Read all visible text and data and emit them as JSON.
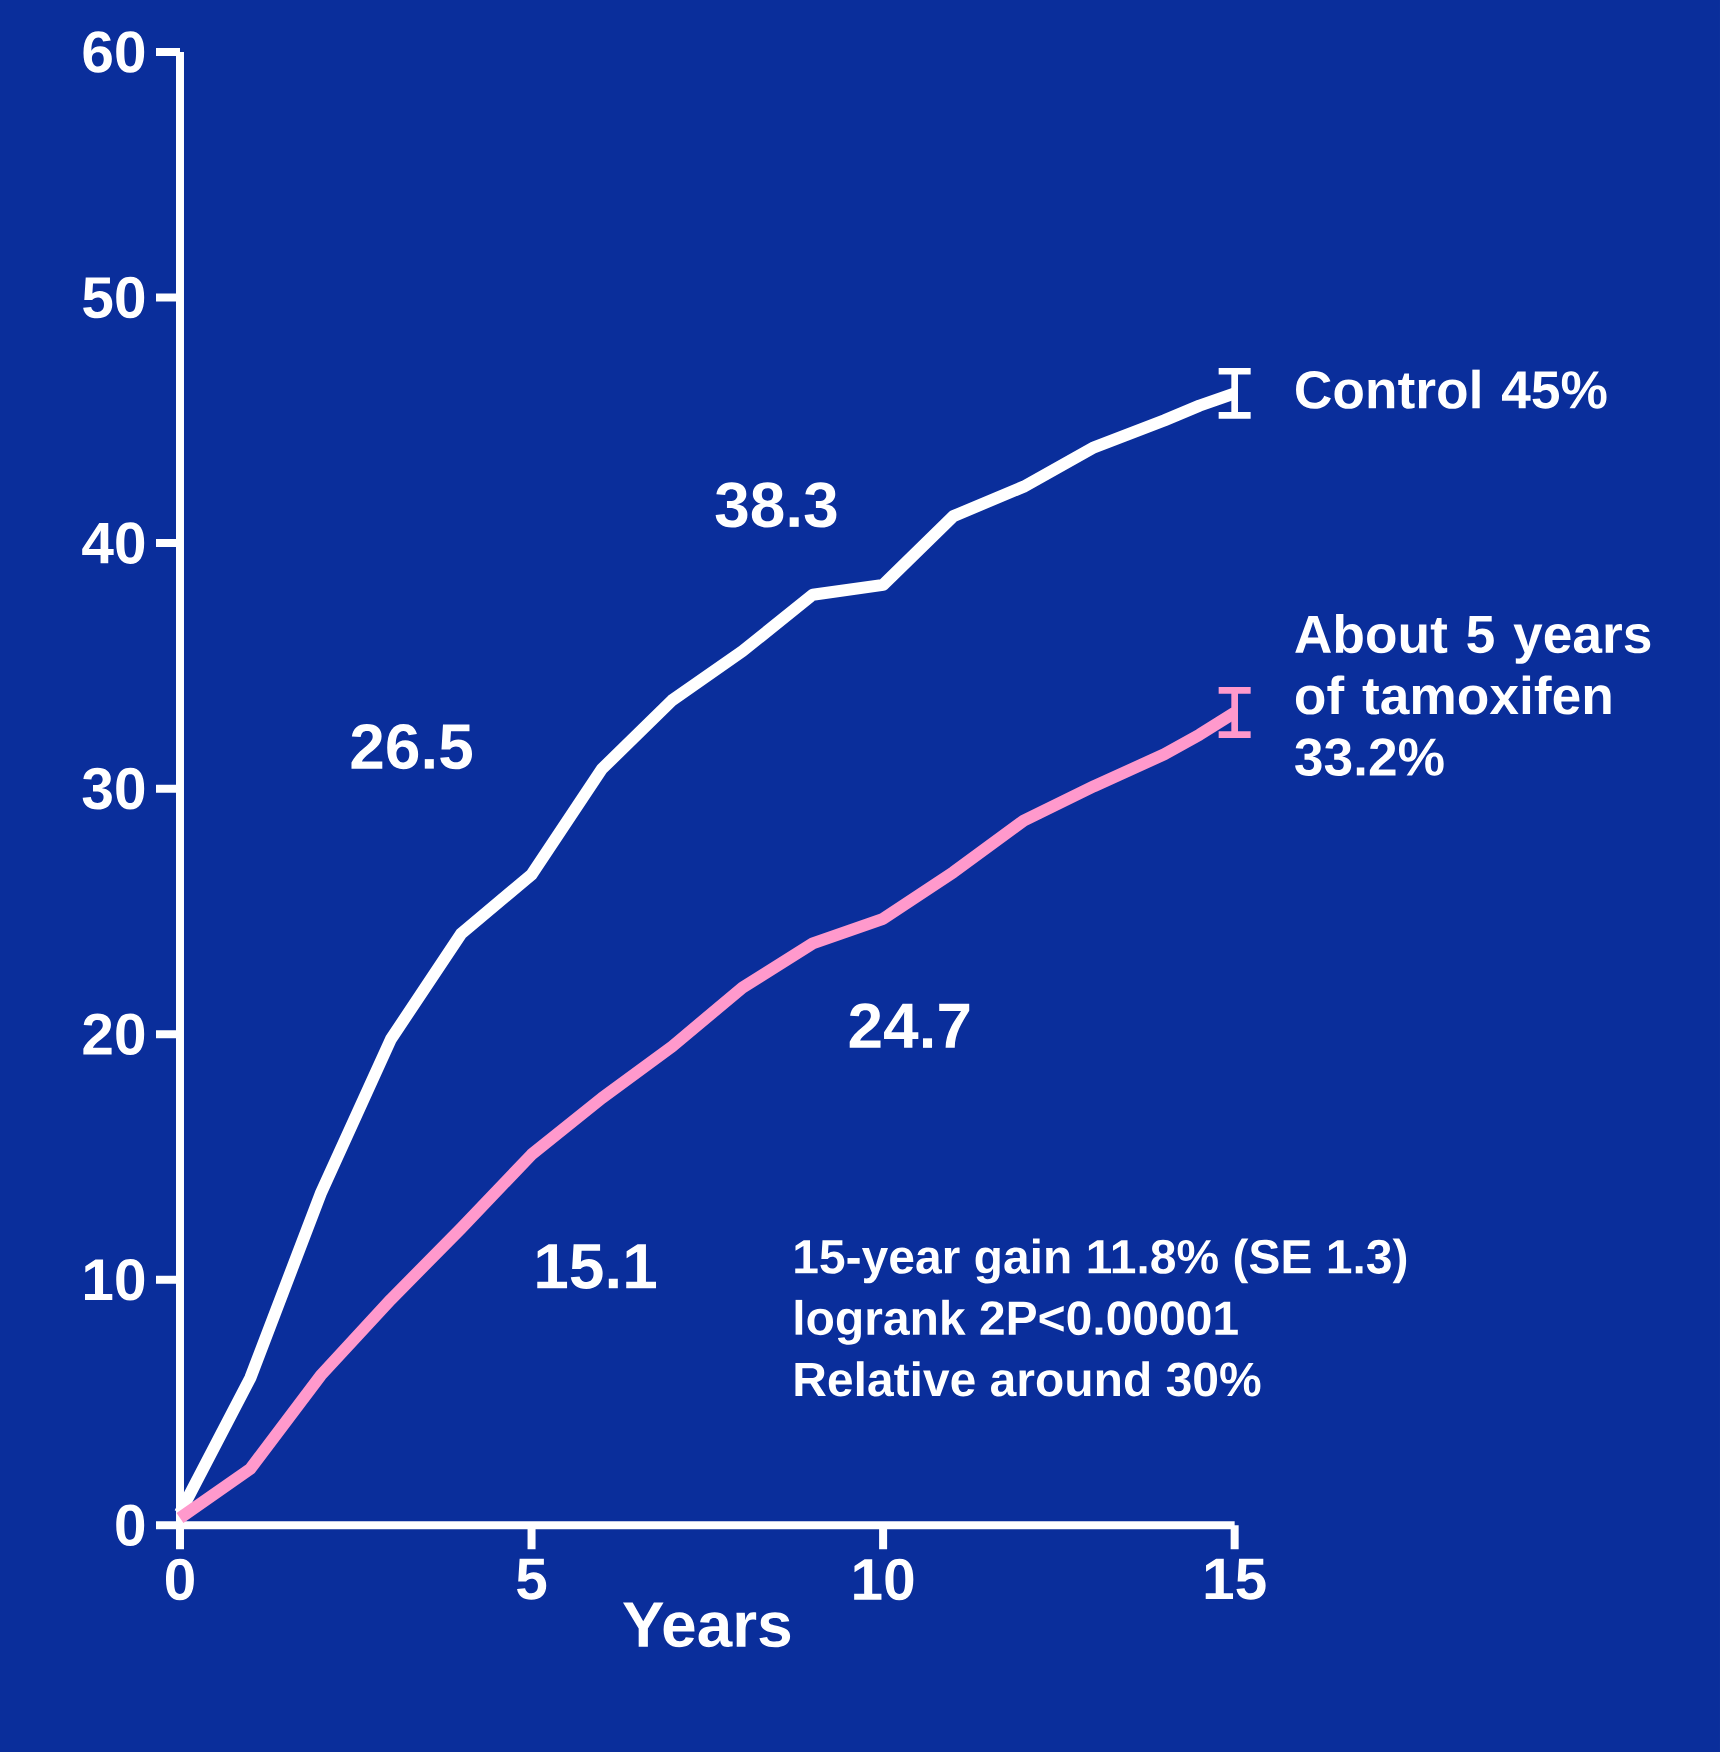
{
  "chart_data": {
    "type": "line",
    "xlabel": "Years",
    "x": [
      0,
      1,
      2,
      3,
      4,
      5,
      6,
      7,
      8,
      9,
      10,
      11,
      12,
      13,
      14,
      14.5,
      15
    ],
    "series": [
      {
        "name": "Control 45%",
        "color": "#ffffff",
        "values": [
          0.5,
          6,
          13.5,
          19.8,
          24.1,
          26.5,
          30.8,
          33.6,
          35.6,
          37.9,
          38.3,
          41.1,
          42.3,
          43.9,
          45.0,
          45.6,
          46.1
        ],
        "value_labels": [
          null,
          null,
          null,
          null,
          null,
          "26.5",
          null,
          null,
          null,
          null,
          "38.3",
          null,
          null,
          null,
          null,
          null,
          null
        ],
        "errors": [
          null,
          null,
          null,
          null,
          null,
          null,
          null,
          null,
          null,
          null,
          null,
          null,
          null,
          null,
          null,
          null,
          0.9
        ]
      },
      {
        "name": "About 5 years of tamoxifen 33.2%",
        "color": "#ff99cc",
        "values": [
          0.3,
          2.3,
          6.1,
          9.2,
          12.1,
          15.1,
          17.4,
          19.5,
          21.9,
          23.7,
          24.7,
          26.6,
          28.7,
          30.1,
          31.4,
          32.2,
          33.1
        ],
        "value_labels": [
          null,
          null,
          null,
          null,
          null,
          "15.1",
          null,
          null,
          null,
          null,
          "24.7",
          null,
          null,
          null,
          null,
          null,
          null
        ],
        "errors": [
          null,
          null,
          null,
          null,
          null,
          null,
          null,
          null,
          null,
          null,
          null,
          null,
          null,
          null,
          null,
          null,
          0.9
        ]
      }
    ],
    "xlim": [
      0,
      15
    ],
    "xticks": [
      0,
      5,
      10,
      15
    ],
    "ylim": [
      0,
      60
    ],
    "yticks": [
      0,
      10,
      20,
      30,
      40,
      50,
      60
    ],
    "grid": false,
    "marker": "none",
    "line_style": "solid",
    "annotations": [
      "15-year gain 11.8% (SE 1.3)",
      "logrank 2P<0.00001",
      "Relative around 30%"
    ]
  }
}
